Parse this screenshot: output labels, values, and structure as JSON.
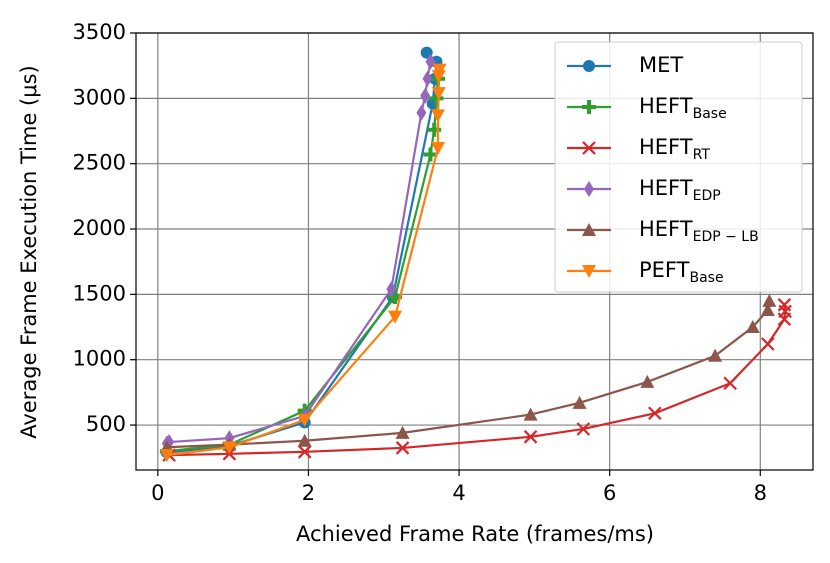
{
  "chart_data": {
    "type": "line",
    "x_label": "Achieved Frame Rate (frames/ms)",
    "y_label": "Average Frame Execution Time (μs)",
    "xlim": [
      -0.29,
      8.7
    ],
    "ylim": [
      156,
      3500
    ],
    "xticks": [
      0,
      2,
      4,
      6,
      8
    ],
    "yticks": [
      500,
      1000,
      1500,
      2000,
      2500,
      3000,
      3500
    ],
    "grid": true,
    "legend": "upper right",
    "series": [
      {
        "name": "MET",
        "color": "#1f77b4",
        "marker": "circle",
        "x": [
          0.12,
          0.95,
          1.95,
          3.12,
          3.65,
          3.68,
          3.7,
          3.57
        ],
        "values": [
          290,
          340,
          520,
          1480,
          2960,
          3150,
          3280,
          3350
        ]
      },
      {
        "name": "HEFT",
        "name_sub": "Base",
        "color": "#2ca02c",
        "marker": "plus",
        "x": [
          0.12,
          0.95,
          1.95,
          3.15,
          3.62,
          3.67,
          3.7,
          3.72
        ],
        "values": [
          300,
          350,
          610,
          1480,
          2570,
          2760,
          3000,
          3150
        ]
      },
      {
        "name": "HEFT",
        "name_sub": "RT",
        "color": "#d62728",
        "marker": "x",
        "x": [
          0.15,
          0.95,
          1.95,
          3.25,
          4.95,
          5.65,
          6.6,
          7.6,
          8.1,
          8.32,
          8.33,
          8.32
        ],
        "values": [
          270,
          280,
          295,
          325,
          410,
          470,
          590,
          820,
          1120,
          1310,
          1370,
          1420
        ]
      },
      {
        "name": "HEFT",
        "name_sub": "EDP",
        "color": "#9467bd",
        "marker": "diamond",
        "x": [
          0.12,
          0.15,
          0.95,
          1.95,
          3.1,
          3.5,
          3.55,
          3.58,
          3.62
        ],
        "values": [
          360,
          370,
          400,
          570,
          1540,
          2890,
          3020,
          3150,
          3280
        ]
      },
      {
        "name": "HEFT",
        "name_sub": "EDP − LB",
        "color": "#8c564b",
        "marker": "triangle-up",
        "x": [
          0.12,
          0.95,
          1.95,
          3.25,
          4.95,
          5.6,
          6.5,
          7.4,
          7.9,
          8.1,
          8.12
        ],
        "values": [
          330,
          350,
          380,
          440,
          580,
          670,
          830,
          1030,
          1250,
          1380,
          1450
        ]
      },
      {
        "name": "PEFT",
        "name_sub": "Base",
        "color": "#ff7f0e",
        "marker": "triangle-down",
        "x": [
          0.12,
          0.95,
          1.95,
          3.15,
          3.72,
          3.72,
          3.73,
          3.73,
          3.74
        ],
        "values": [
          270,
          330,
          540,
          1330,
          2620,
          2870,
          3040,
          3170,
          3220
        ]
      }
    ]
  }
}
